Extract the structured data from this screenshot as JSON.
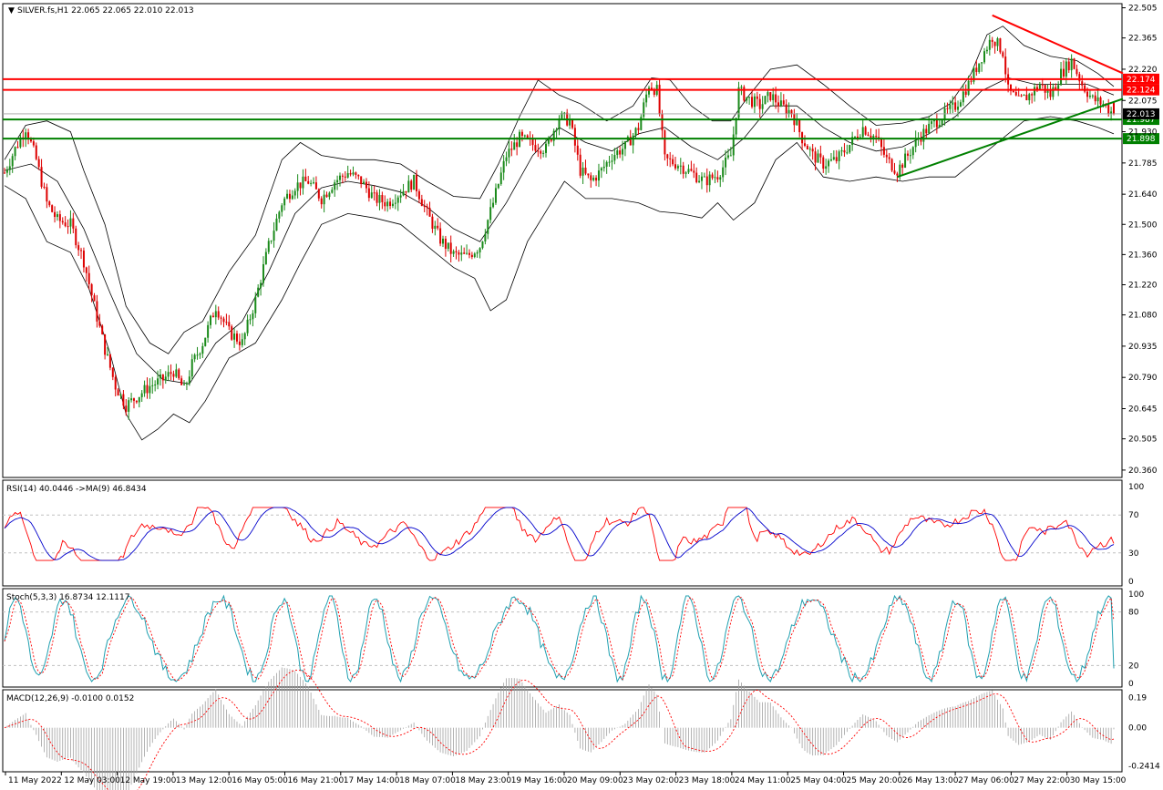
{
  "colors": {
    "bull": "#1a8a1a",
    "bear": "#dd0000",
    "band": "#000000",
    "res": "#ff0000",
    "sup": "#008000",
    "rsi": "#ff0000",
    "rsi_ma": "#0000cc",
    "stoch_main": "#20a0b0",
    "stoch_signal": "#ff0000",
    "macd_hist": "#a0a0a0",
    "macd_signal": "#ff0000",
    "grid": "#c0c0c0"
  },
  "chart_data": [
    {
      "type": "candlestick",
      "title": "SILVER.fs,H1  22.065 22.065 22.010 22.013",
      "symbol": "SILVER.fs",
      "timeframe": "H1",
      "ohlc_last": {
        "open": 22.065,
        "high": 22.065,
        "low": 22.01,
        "close": 22.013
      },
      "ylim": [
        20.33,
        22.52
      ],
      "y_ticks": [
        "22.505",
        "22.365",
        "22.220",
        "22.075",
        "21.930",
        "21.785",
        "21.640",
        "21.500",
        "21.360",
        "21.220",
        "21.080",
        "20.935",
        "20.790",
        "20.645",
        "20.505",
        "20.360"
      ],
      "x_labels": [
        "11 May 2022",
        "12 May 03:00",
        "12 May 19:00",
        "13 May 12:00",
        "16 May 05:00",
        "16 May 21:00",
        "17 May 14:00",
        "18 May 07:00",
        "18 May 23:00",
        "19 May 16:00",
        "20 May 09:00",
        "23 May 02:00",
        "23 May 18:00",
        "24 May 11:00",
        "25 May 04:00",
        "25 May 20:00",
        "26 May 13:00",
        "27 May 06:00",
        "27 May 22:00",
        "30 May 15:00"
      ],
      "close_path": [
        {
          "x": 0,
          "y": 21.74
        },
        {
          "x": 4,
          "y": 21.85
        },
        {
          "x": 8,
          "y": 21.95
        },
        {
          "x": 12,
          "y": 21.8
        },
        {
          "x": 16,
          "y": 21.6
        },
        {
          "x": 20,
          "y": 21.52
        },
        {
          "x": 25,
          "y": 21.5
        },
        {
          "x": 30,
          "y": 21.33
        },
        {
          "x": 34,
          "y": 21.12
        },
        {
          "x": 38,
          "y": 20.92
        },
        {
          "x": 42,
          "y": 20.75
        },
        {
          "x": 46,
          "y": 20.66
        },
        {
          "x": 50,
          "y": 20.7
        },
        {
          "x": 55,
          "y": 20.75
        },
        {
          "x": 60,
          "y": 20.78
        },
        {
          "x": 64,
          "y": 20.82
        },
        {
          "x": 68,
          "y": 20.73
        },
        {
          "x": 71,
          "y": 20.85
        },
        {
          "x": 75,
          "y": 20.95
        },
        {
          "x": 80,
          "y": 21.12
        },
        {
          "x": 85,
          "y": 21.0
        },
        {
          "x": 90,
          "y": 20.95
        },
        {
          "x": 95,
          "y": 21.15
        },
        {
          "x": 100,
          "y": 21.4
        },
        {
          "x": 105,
          "y": 21.6
        },
        {
          "x": 110,
          "y": 21.68
        },
        {
          "x": 115,
          "y": 21.7
        },
        {
          "x": 120,
          "y": 21.62
        },
        {
          "x": 125,
          "y": 21.7
        },
        {
          "x": 130,
          "y": 21.74
        },
        {
          "x": 135,
          "y": 21.7
        },
        {
          "x": 140,
          "y": 21.62
        },
        {
          "x": 145,
          "y": 21.6
        },
        {
          "x": 150,
          "y": 21.65
        },
        {
          "x": 155,
          "y": 21.7
        },
        {
          "x": 160,
          "y": 21.55
        },
        {
          "x": 165,
          "y": 21.43
        },
        {
          "x": 170,
          "y": 21.36
        },
        {
          "x": 175,
          "y": 21.35
        },
        {
          "x": 180,
          "y": 21.4
        },
        {
          "x": 185,
          "y": 21.6
        },
        {
          "x": 190,
          "y": 21.82
        },
        {
          "x": 195,
          "y": 21.9
        },
        {
          "x": 200,
          "y": 21.87
        },
        {
          "x": 205,
          "y": 21.85
        },
        {
          "x": 210,
          "y": 22.0
        },
        {
          "x": 214,
          "y": 21.98
        },
        {
          "x": 218,
          "y": 21.75
        },
        {
          "x": 222,
          "y": 21.7
        },
        {
          "x": 226,
          "y": 21.75
        },
        {
          "x": 230,
          "y": 21.82
        },
        {
          "x": 235,
          "y": 21.86
        },
        {
          "x": 240,
          "y": 21.95
        },
        {
          "x": 244,
          "y": 22.15
        },
        {
          "x": 247,
          "y": 22.12
        },
        {
          "x": 250,
          "y": 21.8
        },
        {
          "x": 255,
          "y": 21.78
        },
        {
          "x": 260,
          "y": 21.74
        },
        {
          "x": 265,
          "y": 21.7
        },
        {
          "x": 270,
          "y": 21.73
        },
        {
          "x": 275,
          "y": 21.82
        },
        {
          "x": 278,
          "y": 22.12
        },
        {
          "x": 282,
          "y": 22.08
        },
        {
          "x": 286,
          "y": 22.05
        },
        {
          "x": 290,
          "y": 22.1
        },
        {
          "x": 294,
          "y": 22.05
        },
        {
          "x": 298,
          "y": 22.02
        },
        {
          "x": 302,
          "y": 21.9
        },
        {
          "x": 306,
          "y": 21.82
        },
        {
          "x": 310,
          "y": 21.78
        },
        {
          "x": 315,
          "y": 21.8
        },
        {
          "x": 320,
          "y": 21.87
        },
        {
          "x": 325,
          "y": 21.95
        },
        {
          "x": 330,
          "y": 21.9
        },
        {
          "x": 334,
          "y": 21.8
        },
        {
          "x": 338,
          "y": 21.75
        },
        {
          "x": 342,
          "y": 21.82
        },
        {
          "x": 346,
          "y": 21.9
        },
        {
          "x": 350,
          "y": 21.95
        },
        {
          "x": 355,
          "y": 22.0
        },
        {
          "x": 360,
          "y": 22.05
        },
        {
          "x": 365,
          "y": 22.15
        },
        {
          "x": 370,
          "y": 22.28
        },
        {
          "x": 374,
          "y": 22.37
        },
        {
          "x": 378,
          "y": 22.3
        },
        {
          "x": 380,
          "y": 22.12
        },
        {
          "x": 384,
          "y": 22.07
        },
        {
          "x": 388,
          "y": 22.1
        },
        {
          "x": 392,
          "y": 22.15
        },
        {
          "x": 396,
          "y": 22.1
        },
        {
          "x": 400,
          "y": 22.2
        },
        {
          "x": 404,
          "y": 22.26
        },
        {
          "x": 408,
          "y": 22.15
        },
        {
          "x": 412,
          "y": 22.08
        },
        {
          "x": 416,
          "y": 22.06
        },
        {
          "x": 420,
          "y": 22.01
        }
      ],
      "bollinger": {
        "upper": [
          {
            "x": 0,
            "y": 21.8
          },
          {
            "x": 8,
            "y": 21.96
          },
          {
            "x": 16,
            "y": 21.98
          },
          {
            "x": 25,
            "y": 21.93
          },
          {
            "x": 30,
            "y": 21.75
          },
          {
            "x": 38,
            "y": 21.5
          },
          {
            "x": 46,
            "y": 21.12
          },
          {
            "x": 55,
            "y": 20.95
          },
          {
            "x": 62,
            "y": 20.9
          },
          {
            "x": 68,
            "y": 21.0
          },
          {
            "x": 75,
            "y": 21.05
          },
          {
            "x": 85,
            "y": 21.28
          },
          {
            "x": 95,
            "y": 21.45
          },
          {
            "x": 105,
            "y": 21.8
          },
          {
            "x": 112,
            "y": 21.88
          },
          {
            "x": 120,
            "y": 21.82
          },
          {
            "x": 130,
            "y": 21.8
          },
          {
            "x": 140,
            "y": 21.8
          },
          {
            "x": 150,
            "y": 21.78
          },
          {
            "x": 160,
            "y": 21.7
          },
          {
            "x": 170,
            "y": 21.63
          },
          {
            "x": 180,
            "y": 21.62
          },
          {
            "x": 187,
            "y": 21.78
          },
          {
            "x": 195,
            "y": 22.0
          },
          {
            "x": 202,
            "y": 22.17
          },
          {
            "x": 210,
            "y": 22.1
          },
          {
            "x": 218,
            "y": 22.06
          },
          {
            "x": 228,
            "y": 21.98
          },
          {
            "x": 238,
            "y": 22.05
          },
          {
            "x": 245,
            "y": 22.18
          },
          {
            "x": 252,
            "y": 22.17
          },
          {
            "x": 260,
            "y": 22.05
          },
          {
            "x": 268,
            "y": 21.98
          },
          {
            "x": 275,
            "y": 21.98
          },
          {
            "x": 282,
            "y": 22.1
          },
          {
            "x": 290,
            "y": 22.22
          },
          {
            "x": 300,
            "y": 22.24
          },
          {
            "x": 310,
            "y": 22.15
          },
          {
            "x": 320,
            "y": 22.05
          },
          {
            "x": 330,
            "y": 21.96
          },
          {
            "x": 340,
            "y": 21.97
          },
          {
            "x": 350,
            "y": 22.0
          },
          {
            "x": 358,
            "y": 22.06
          },
          {
            "x": 366,
            "y": 22.2
          },
          {
            "x": 372,
            "y": 22.38
          },
          {
            "x": 378,
            "y": 22.42
          },
          {
            "x": 386,
            "y": 22.33
          },
          {
            "x": 396,
            "y": 22.28
          },
          {
            "x": 406,
            "y": 22.26
          },
          {
            "x": 414,
            "y": 22.2
          },
          {
            "x": 420,
            "y": 22.14
          }
        ],
        "middle": [
          {
            "x": 0,
            "y": 21.75
          },
          {
            "x": 10,
            "y": 21.78
          },
          {
            "x": 20,
            "y": 21.7
          },
          {
            "x": 30,
            "y": 21.48
          },
          {
            "x": 40,
            "y": 21.18
          },
          {
            "x": 50,
            "y": 20.9
          },
          {
            "x": 60,
            "y": 20.78
          },
          {
            "x": 70,
            "y": 20.76
          },
          {
            "x": 80,
            "y": 20.95
          },
          {
            "x": 90,
            "y": 21.05
          },
          {
            "x": 100,
            "y": 21.28
          },
          {
            "x": 110,
            "y": 21.55
          },
          {
            "x": 120,
            "y": 21.67
          },
          {
            "x": 130,
            "y": 21.7
          },
          {
            "x": 140,
            "y": 21.68
          },
          {
            "x": 150,
            "y": 21.65
          },
          {
            "x": 160,
            "y": 21.58
          },
          {
            "x": 170,
            "y": 21.48
          },
          {
            "x": 180,
            "y": 21.42
          },
          {
            "x": 190,
            "y": 21.6
          },
          {
            "x": 200,
            "y": 21.82
          },
          {
            "x": 210,
            "y": 21.95
          },
          {
            "x": 220,
            "y": 21.88
          },
          {
            "x": 230,
            "y": 21.84
          },
          {
            "x": 240,
            "y": 21.92
          },
          {
            "x": 250,
            "y": 21.95
          },
          {
            "x": 260,
            "y": 21.86
          },
          {
            "x": 270,
            "y": 21.8
          },
          {
            "x": 280,
            "y": 21.9
          },
          {
            "x": 290,
            "y": 22.05
          },
          {
            "x": 300,
            "y": 22.05
          },
          {
            "x": 310,
            "y": 21.95
          },
          {
            "x": 320,
            "y": 21.88
          },
          {
            "x": 330,
            "y": 21.84
          },
          {
            "x": 340,
            "y": 21.86
          },
          {
            "x": 350,
            "y": 21.92
          },
          {
            "x": 360,
            "y": 22.0
          },
          {
            "x": 370,
            "y": 22.12
          },
          {
            "x": 380,
            "y": 22.18
          },
          {
            "x": 390,
            "y": 22.15
          },
          {
            "x": 400,
            "y": 22.15
          },
          {
            "x": 410,
            "y": 22.15
          },
          {
            "x": 420,
            "y": 22.1
          }
        ],
        "lower": [
          {
            "x": 0,
            "y": 21.68
          },
          {
            "x": 8,
            "y": 21.62
          },
          {
            "x": 16,
            "y": 21.42
          },
          {
            "x": 25,
            "y": 21.37
          },
          {
            "x": 32,
            "y": 21.2
          },
          {
            "x": 40,
            "y": 20.9
          },
          {
            "x": 46,
            "y": 20.62
          },
          {
            "x": 52,
            "y": 20.5
          },
          {
            "x": 58,
            "y": 20.55
          },
          {
            "x": 64,
            "y": 20.62
          },
          {
            "x": 70,
            "y": 20.58
          },
          {
            "x": 76,
            "y": 20.68
          },
          {
            "x": 85,
            "y": 20.88
          },
          {
            "x": 95,
            "y": 20.95
          },
          {
            "x": 105,
            "y": 21.15
          },
          {
            "x": 112,
            "y": 21.32
          },
          {
            "x": 120,
            "y": 21.5
          },
          {
            "x": 130,
            "y": 21.55
          },
          {
            "x": 140,
            "y": 21.53
          },
          {
            "x": 150,
            "y": 21.5
          },
          {
            "x": 160,
            "y": 21.4
          },
          {
            "x": 170,
            "y": 21.3
          },
          {
            "x": 178,
            "y": 21.25
          },
          {
            "x": 184,
            "y": 21.1
          },
          {
            "x": 190,
            "y": 21.15
          },
          {
            "x": 198,
            "y": 21.42
          },
          {
            "x": 206,
            "y": 21.58
          },
          {
            "x": 212,
            "y": 21.7
          },
          {
            "x": 220,
            "y": 21.62
          },
          {
            "x": 230,
            "y": 21.62
          },
          {
            "x": 240,
            "y": 21.6
          },
          {
            "x": 248,
            "y": 21.56
          },
          {
            "x": 256,
            "y": 21.55
          },
          {
            "x": 264,
            "y": 21.53
          },
          {
            "x": 270,
            "y": 21.6
          },
          {
            "x": 276,
            "y": 21.52
          },
          {
            "x": 284,
            "y": 21.6
          },
          {
            "x": 292,
            "y": 21.8
          },
          {
            "x": 300,
            "y": 21.88
          },
          {
            "x": 310,
            "y": 21.72
          },
          {
            "x": 320,
            "y": 21.7
          },
          {
            "x": 330,
            "y": 21.72
          },
          {
            "x": 340,
            "y": 21.7
          },
          {
            "x": 350,
            "y": 21.72
          },
          {
            "x": 360,
            "y": 21.72
          },
          {
            "x": 368,
            "y": 21.8
          },
          {
            "x": 376,
            "y": 21.88
          },
          {
            "x": 386,
            "y": 21.98
          },
          {
            "x": 396,
            "y": 22.0
          },
          {
            "x": 406,
            "y": 21.98
          },
          {
            "x": 414,
            "y": 21.95
          },
          {
            "x": 420,
            "y": 21.92
          }
        ]
      },
      "horizontal_levels": [
        {
          "price": 22.174,
          "label": "22.174",
          "color": "#ff0000"
        },
        {
          "price": 22.124,
          "label": "22.124",
          "color": "#ff0000"
        },
        {
          "price": 21.987,
          "label": "21.987",
          "color": "#008000"
        },
        {
          "price": 21.898,
          "label": "21.898",
          "color": "#008000"
        }
      ],
      "current_price": {
        "price": 22.013,
        "label": "22.013"
      },
      "trendlines": [
        {
          "color": "#ff0000",
          "from": {
            "x": 374,
            "y": 22.47
          },
          "to": {
            "x": 420,
            "y": 22.18
          }
        },
        {
          "color": "#008000",
          "from": {
            "x": 338,
            "y": 21.72
          },
          "to": {
            "x": 420,
            "y": 22.07
          }
        }
      ]
    },
    {
      "type": "line",
      "title": "RSI(14) 40.0446  ->MA(9) 46.8434",
      "ylim": [
        0,
        100
      ],
      "y_ticks": [
        "100",
        "70",
        "30",
        "0"
      ],
      "levels": [
        70,
        30
      ]
    },
    {
      "type": "line",
      "title": "Stoch(5,3,3) 16.8734 12.1117",
      "ylim": [
        0,
        100
      ],
      "y_ticks": [
        "100",
        "80",
        "20",
        "0"
      ],
      "levels": [
        80,
        20
      ]
    },
    {
      "type": "bar",
      "title": "MACD(12,26,9) -0.0100 0.0152",
      "ylim": [
        -0.25,
        0.2
      ],
      "y_ticks": [
        "0.19",
        "0.00",
        "-0.2414"
      ]
    }
  ]
}
